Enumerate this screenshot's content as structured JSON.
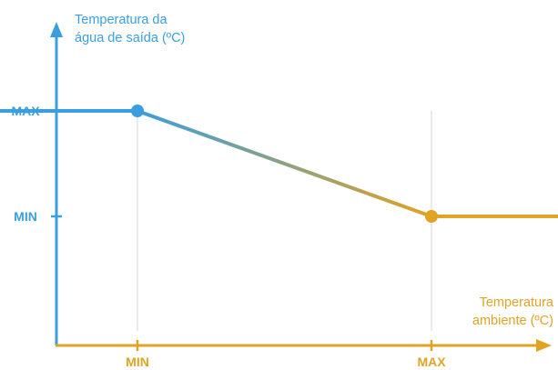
{
  "colors": {
    "y_axis": "#3a9fe0",
    "x_axis": "#e0a324",
    "grid": "#d4d4d4"
  },
  "chart_data": {
    "type": "line",
    "title": "",
    "ylabel": [
      "Temperatura da",
      "água de saída (ºC)"
    ],
    "xlabel": [
      "Temperatura",
      "ambiente (ºC)"
    ],
    "x_ticks": [
      "MIN",
      "MAX"
    ],
    "y_ticks": [
      "MIN",
      "MAX"
    ],
    "grid": "vertical",
    "series": [
      {
        "x": [
          -0.55,
          0,
          1,
          1.55
        ],
        "y": [
          1,
          1,
          0,
          0
        ]
      }
    ],
    "markers": [
      {
        "x": 0,
        "y": 1
      },
      {
        "x": 1,
        "y": 0
      }
    ]
  }
}
